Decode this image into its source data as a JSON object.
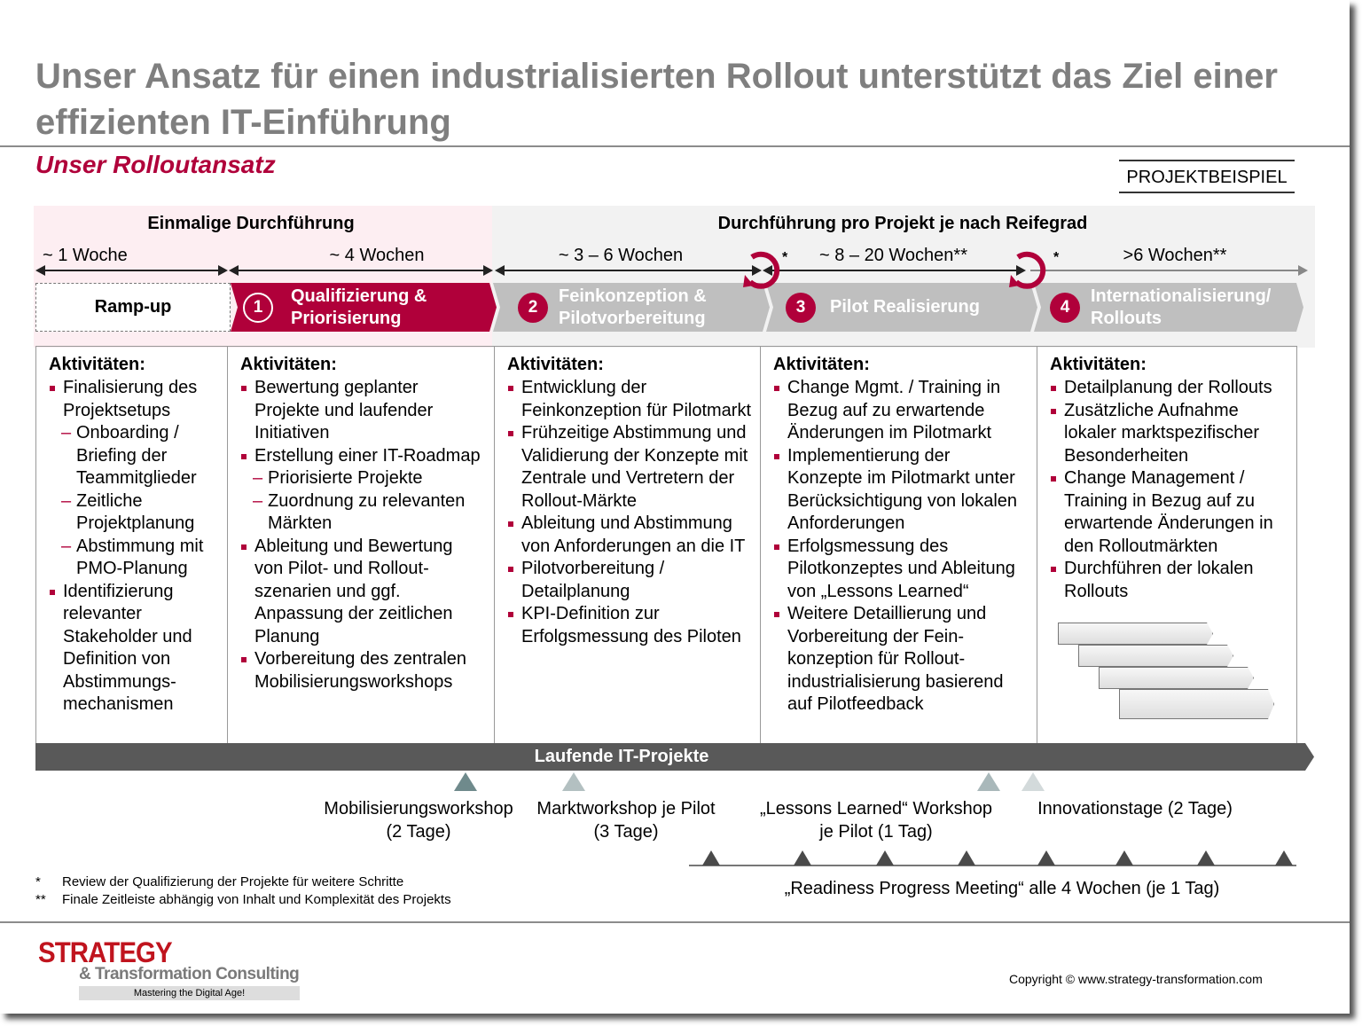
{
  "title": "Unser Ansatz für einen industrialisierten Rollout unterstützt das Ziel einer effizienten IT-Einführung",
  "subtitle": "Unser Rolloutansatz",
  "tag": "PROJEKTBEISPIEL",
  "colors": {
    "accent": "#b0003a",
    "phase_grey": "#bfbfbf",
    "bar": "#595959",
    "pink_bg": "#fdeef2"
  },
  "headers": {
    "once": "Einmalige Durchführung",
    "per_project": "Durchführung pro Projekt je nach Reifegrad"
  },
  "durations": [
    "~ 1 Woche",
    "~ 4 Wochen",
    "~ 3 – 6 Wochen",
    "~ 8 – 20 Wochen**",
    ">6 Wochen**"
  ],
  "review_marks": [
    "*",
    "*"
  ],
  "phases": [
    {
      "number": "",
      "label": "Ramp-up"
    },
    {
      "number": "1",
      "label": "Qualifizierung & Priorisierung"
    },
    {
      "number": "2",
      "label": "Feinkonzeption & Pilotvorbereitung"
    },
    {
      "number": "3",
      "label": "Pilot Realisierung"
    },
    {
      "number": "4",
      "label": "Internationalisierung/ Rollouts"
    }
  ],
  "columns": [
    {
      "heading": "Aktivitäten:",
      "items": [
        {
          "t": "b",
          "text": "Finalisierung des Projektsetups"
        },
        {
          "t": "s",
          "text": "Onboarding / Briefing der Teammitglieder"
        },
        {
          "t": "s",
          "text": "Zeitliche Projektplanung"
        },
        {
          "t": "s",
          "text": "Abstimmung mit PMO-Planung"
        },
        {
          "t": "b",
          "text": "Identifizierung relevanter Stakeholder und Definition von Abstimmungs-mechanismen"
        }
      ]
    },
    {
      "heading": "Aktivitäten:",
      "items": [
        {
          "t": "b",
          "text": "Bewertung geplanter Projekte und laufender Initiativen"
        },
        {
          "t": "b",
          "text": "Erstellung einer IT-Roadmap"
        },
        {
          "t": "s",
          "text": "Priorisierte Projekte"
        },
        {
          "t": "s",
          "text": "Zuordnung zu relevanten Märkten"
        },
        {
          "t": "b",
          "text": "Ableitung und Bewertung von Pilot- und Rollout-szenarien und ggf. Anpassung der zeitlichen Planung"
        },
        {
          "t": "b",
          "text": "Vorbereitung des zentralen Mobilisierungsworkshops"
        }
      ]
    },
    {
      "heading": "Aktivitäten:",
      "items": [
        {
          "t": "b",
          "text": "Entwicklung der Feinkonzeption für Pilotmarkt"
        },
        {
          "t": "b",
          "text": "Frühzeitige Abstimmung und Validierung der Konzepte mit Zentrale und Vertretern der Rollout-Märkte"
        },
        {
          "t": "b",
          "text": "Ableitung  und Abstimmung  von Anforderungen an die IT"
        },
        {
          "t": "b",
          "text": "Pilotvorbereitung  / Detailplanung"
        },
        {
          "t": "b",
          "text": "KPI-Definition zur Erfolgsmessung des Piloten"
        }
      ]
    },
    {
      "heading": "Aktivitäten:",
      "items": [
        {
          "t": "b",
          "text": "Change Mgmt. / Training in Bezug auf zu erwartende Änderungen im Pilotmarkt"
        },
        {
          "t": "b",
          "text": "Implementierung der Konzepte im Pilotmarkt unter Berücksichtigung von lokalen Anforderungen"
        },
        {
          "t": "b",
          "text": "Erfolgsmessung des Pilotkonzeptes und Ableitung von „Lessons Learned“"
        },
        {
          "t": "b",
          "text": "Weitere Detaillierung und Vorbereitung der Fein-konzeption für Rollout-industrialisierung basierend auf Pilotfeedback"
        }
      ]
    },
    {
      "heading": "Aktivitäten:",
      "items": [
        {
          "t": "b",
          "text": "Detailplanung der Rollouts"
        },
        {
          "t": "b",
          "text": "Zusätzliche Aufnahme lokaler marktspezifischer Besonderheiten"
        },
        {
          "t": "b",
          "text": "Change Management / Training in Bezug auf zu erwartende Änderungen in den Rolloutmärkten"
        },
        {
          "t": "b",
          "text": "Durchführen der lokalen Rollouts"
        }
      ]
    }
  ],
  "ongoing_bar": "Laufende IT-Projekte",
  "workshops": [
    {
      "line1": "Mobilisierungsworkshop",
      "line2": "(2 Tage)",
      "color": "#6f8a8c"
    },
    {
      "line1": "Marktworkshop je Pilot",
      "line2": "(3 Tage)",
      "color": "#b3c0c1"
    },
    {
      "line1": "„Lessons Learned“ Workshop",
      "line2": "je Pilot (1 Tag)",
      "color": "#a9b8ba"
    },
    {
      "line1": "Innovationstage (2 Tage)",
      "line2": "",
      "color": "#d3dadb"
    }
  ],
  "readiness": "„Readiness Progress Meeting“ alle 4 Wochen (je 1 Tag)",
  "footnotes": [
    {
      "mark": "*",
      "text": "Review der Qualifizierung der Projekte für weitere Schritte"
    },
    {
      "mark": "**",
      "text": "Finale Zeitleiste abhängig von Inhalt und Komplexität des Projekts"
    }
  ],
  "logo": {
    "line1": "STRATEGY",
    "line2": "& Transformation Consulting",
    "tagline": "Mastering the Digital Age!"
  },
  "copyright": "Copyright © www.strategy-transformation.com"
}
